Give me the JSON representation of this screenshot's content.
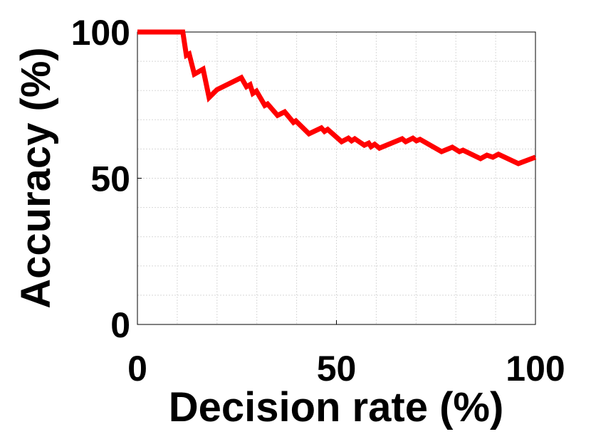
{
  "chart_data": {
    "type": "line",
    "x_label": "Decision rate (%)",
    "y_label": "Accuracy (%)",
    "xlim": [
      0,
      100
    ],
    "ylim": [
      0,
      100
    ],
    "xticks": [
      0,
      50,
      100
    ],
    "yticks": [
      0,
      50,
      100
    ],
    "xminorticks": [
      10,
      20,
      30,
      40,
      60,
      70,
      80,
      90
    ],
    "yminorticks": [
      10,
      20,
      30,
      40,
      60,
      70,
      80,
      90
    ],
    "grid": true,
    "series": [
      {
        "color": "#ff0000",
        "x": [
          0,
          11.4,
          12.3,
          13,
          14.3,
          16.5,
          18,
          20,
          26.1,
          27.4,
          28.3,
          29,
          29.9,
          32,
          32.7,
          35.2,
          37,
          39.2,
          39.8,
          43.1,
          46.2,
          47,
          47.8,
          51.3,
          53,
          53.8,
          54.6,
          57,
          58.1,
          58.7,
          59.6,
          60.8,
          66.5,
          67.4,
          69.2,
          70.1,
          71,
          76.4,
          79.1,
          80.9,
          81.8,
          86.2,
          87.8,
          89.3,
          90.7,
          95.7,
          100
        ],
        "values": [
          100,
          100,
          92,
          92.5,
          85.6,
          87.3,
          77.6,
          80.3,
          84.4,
          81.3,
          82,
          79,
          79.8,
          74.9,
          75.4,
          71.5,
          72.7,
          69.1,
          69.6,
          65.2,
          67.2,
          66,
          66.7,
          62.5,
          63.7,
          62.8,
          63.5,
          61.3,
          62,
          60.8,
          61.6,
          60.3,
          63.5,
          62.5,
          63.7,
          62.8,
          63.3,
          59.1,
          60.6,
          59.1,
          59.6,
          56.7,
          57.9,
          57.2,
          58.2,
          55,
          57.2
        ]
      }
    ]
  }
}
